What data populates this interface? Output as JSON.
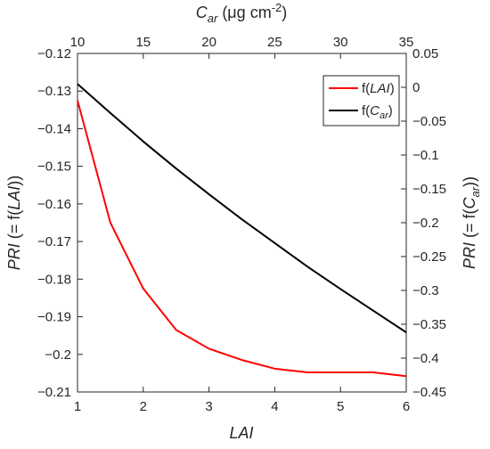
{
  "chart_data": {
    "type": "line",
    "bottom_axis": {
      "label": "LAI",
      "lim": [
        1,
        6
      ],
      "ticks": [
        "1",
        "2",
        "3",
        "4",
        "5",
        "6"
      ]
    },
    "top_axis": {
      "label_main": "C",
      "label_sub": "ar",
      "label_unit": " (μg cm",
      "label_exp": "-2",
      "label_close": ")",
      "lim": [
        10,
        35
      ],
      "ticks": [
        "10",
        "15",
        "20",
        "25",
        "30",
        "35"
      ]
    },
    "left_axis": {
      "label_a": "PRI",
      "label_b": " (= f(",
      "label_c": "LAI",
      "label_d": "))",
      "lim": [
        -0.21,
        -0.12
      ],
      "ticks": [
        "−0.12",
        "−0.13",
        "−0.14",
        "−0.15",
        "−0.16",
        "−0.17",
        "−0.18",
        "−0.19",
        "−0.2",
        "−0.21"
      ]
    },
    "right_axis": {
      "label_a": "PRI",
      "label_b": " (= f(",
      "label_c": "C",
      "label_sub": "ar",
      "label_d": "))",
      "lim": [
        -0.45,
        0.05
      ],
      "ticks": [
        "0.05",
        "0",
        "−0.05",
        "−0.1",
        "−0.15",
        "−0.2",
        "−0.25",
        "−0.3",
        "−0.35",
        "−0.4",
        "−0.45"
      ]
    },
    "series": [
      {
        "name_prefix": "f(",
        "name_italic": "LAI",
        "name_suffix": ")",
        "color": "#ff0000",
        "x_axis": "bottom",
        "y_axis": "left",
        "x": [
          1,
          1.5,
          2,
          2.5,
          3,
          3.5,
          4,
          4.5,
          5,
          5.5,
          6
        ],
        "y": [
          -0.1325,
          -0.165,
          -0.1825,
          -0.1935,
          -0.1985,
          -0.2015,
          -0.2038,
          -0.2048,
          -0.2048,
          -0.2048,
          -0.2058
        ]
      },
      {
        "name_prefix": "f(",
        "name_italic": "C",
        "name_sub": "ar",
        "name_suffix": ")",
        "color": "#000000",
        "x_axis": "top",
        "y_axis": "right",
        "x": [
          10,
          12.5,
          15,
          17.5,
          20,
          22.5,
          25,
          27.5,
          30,
          32.5,
          35
        ],
        "y": [
          0.005,
          -0.038,
          -0.08,
          -0.12,
          -0.158,
          -0.195,
          -0.23,
          -0.265,
          -0.298,
          -0.33,
          -0.362
        ]
      }
    ],
    "legend_position": "top-right",
    "grid": false
  }
}
